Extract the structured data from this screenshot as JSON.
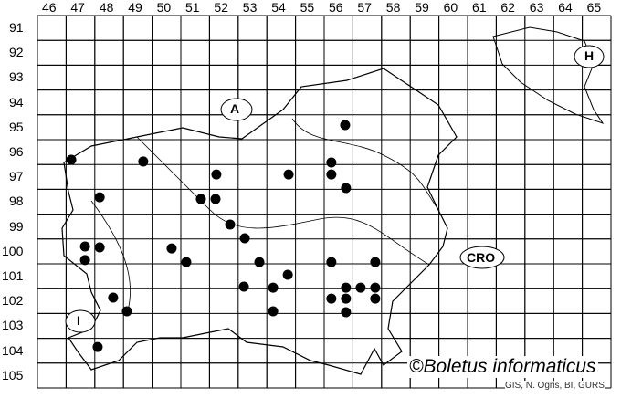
{
  "map": {
    "columns": [
      "46",
      "47",
      "48",
      "49",
      "50",
      "51",
      "52",
      "53",
      "54",
      "55",
      "56",
      "57",
      "58",
      "59",
      "60",
      "61",
      "62",
      "63",
      "64",
      "65"
    ],
    "rows": [
      "91",
      "92",
      "93",
      "94",
      "95",
      "96",
      "97",
      "98",
      "99",
      "100",
      "101",
      "102",
      "103",
      "104",
      "105"
    ],
    "country_labels": [
      {
        "id": "austria",
        "text": "A"
      },
      {
        "id": "hungary",
        "text": "H"
      },
      {
        "id": "croatia",
        "text": "CRO"
      },
      {
        "id": "italy",
        "text": "I"
      }
    ],
    "credit": "©Boletus informaticus",
    "source": "GIS, N. Ogris, BI, GURS",
    "dot_color": "#000000",
    "records": [
      [
        47.18,
        96.81
      ],
      [
        49.69,
        96.88
      ],
      [
        48.17,
        98.32
      ],
      [
        47.66,
        100.3
      ],
      [
        48.17,
        100.34
      ],
      [
        47.66,
        100.85
      ],
      [
        48.64,
        102.36
      ],
      [
        49.12,
        102.91
      ],
      [
        48.1,
        104.35
      ],
      [
        50.68,
        100.38
      ],
      [
        51.19,
        100.93
      ],
      [
        51.7,
        98.39
      ],
      [
        52.21,
        98.39
      ],
      [
        52.24,
        97.4
      ],
      [
        52.72,
        99.42
      ],
      [
        53.23,
        99.97
      ],
      [
        53.74,
        100.93
      ],
      [
        53.2,
        101.92
      ],
      [
        54.22,
        101.96
      ],
      [
        54.73,
        101.44
      ],
      [
        54.22,
        102.91
      ],
      [
        54.76,
        97.4
      ],
      [
        56.73,
        95.41
      ],
      [
        56.25,
        96.92
      ],
      [
        56.25,
        97.4
      ],
      [
        56.76,
        97.95
      ],
      [
        56.25,
        100.93
      ],
      [
        57.78,
        100.93
      ],
      [
        56.25,
        102.4
      ],
      [
        56.76,
        101.96
      ],
      [
        57.27,
        101.96
      ],
      [
        57.78,
        101.96
      ],
      [
        56.76,
        102.4
      ],
      [
        57.78,
        102.4
      ],
      [
        56.76,
        102.95
      ]
    ]
  }
}
